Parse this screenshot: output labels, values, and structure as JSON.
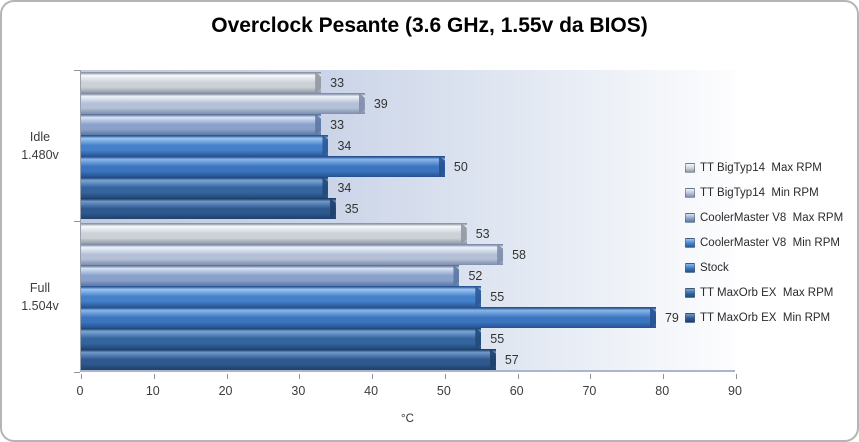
{
  "chart_data": {
    "type": "bar",
    "orientation": "horizontal",
    "title": "Overclock Pesante (3.6 GHz, 1.55v da BIOS)",
    "xlabel": "°C",
    "xlim": [
      0,
      90
    ],
    "xticks": [
      0,
      10,
      20,
      30,
      40,
      50,
      60,
      70,
      80,
      90
    ],
    "grid": false,
    "legend_position": "right",
    "categories": [
      {
        "line1": "Idle",
        "line2": "1.480v"
      },
      {
        "line1": "Full",
        "line2": "1.504v"
      }
    ],
    "series": [
      {
        "name": "TT BigTyp14  Max RPM",
        "values": [
          33,
          53
        ],
        "color": "#ccd1d7",
        "highlight": "#f7f9fb",
        "dark": "#8f97a3"
      },
      {
        "name": "TT BigTyp14  Min RPM",
        "values": [
          39,
          58
        ],
        "color": "#b4c0d6",
        "highlight": "#eef3fa",
        "dark": "#7e8dab"
      },
      {
        "name": "CoolerMaster V8  Max RPM",
        "values": [
          33,
          52
        ],
        "color": "#8aa2cb",
        "highlight": "#d9e3f3",
        "dark": "#5d77a3"
      },
      {
        "name": "CoolerMaster V8  Min RPM",
        "values": [
          34,
          55
        ],
        "color": "#4580ca",
        "highlight": "#9cc6f2",
        "dark": "#2b5897"
      },
      {
        "name": "Stock",
        "values": [
          50,
          79
        ],
        "color": "#3b74bf",
        "highlight": "#88b7ea",
        "dark": "#275190"
      },
      {
        "name": "TT MaxOrb EX  Max RPM",
        "values": [
          34,
          55
        ],
        "color": "#35659f",
        "highlight": "#7aa6d6",
        "dark": "#224a78"
      },
      {
        "name": "TT MaxOrb EX  Min RPM",
        "values": [
          35,
          57
        ],
        "color": "#2f588f",
        "highlight": "#6f9aca",
        "dark": "#1e406b"
      }
    ],
    "colors": {
      "plot_bg_left": "#bfcae0",
      "plot_bg_mid": "#c9d3e7",
      "plot_bg_light": "#e8edf5",
      "plot_bg_right": "#fdfdfe",
      "axis_line": "#aab6cc",
      "tick": "#8a92a0",
      "tick_text": "#3c3c3c",
      "label_text": "#333333",
      "frame_border": "#b5b5b5",
      "title_text": "#000000"
    }
  }
}
